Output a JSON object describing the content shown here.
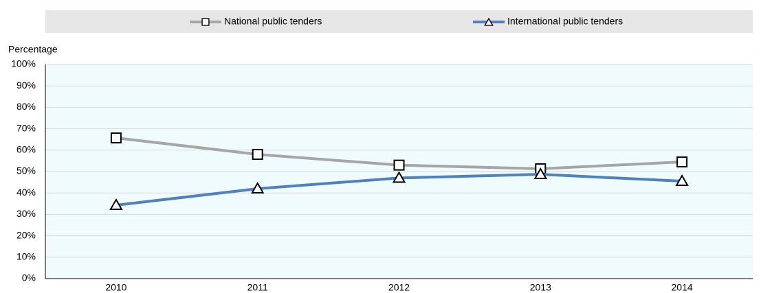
{
  "chart_data": {
    "type": "line",
    "y_axis_label": "Percentage",
    "categories": [
      "2010",
      "2011",
      "2012",
      "2013",
      "2014"
    ],
    "series": [
      {
        "name": "National public tenders",
        "color": "#a6a6a6",
        "marker": "square",
        "values": [
          65.7,
          58,
          53,
          51.3,
          54.5
        ]
      },
      {
        "name": "International public tenders",
        "color": "#4f81bd",
        "marker": "triangle",
        "values": [
          34.3,
          42,
          47,
          48.7,
          45.5
        ]
      }
    ],
    "ylim": [
      0,
      100
    ],
    "yticks": [
      {
        "value": 0,
        "label": "0%"
      },
      {
        "value": 10,
        "label": "10%"
      },
      {
        "value": 20,
        "label": "20%"
      },
      {
        "value": 30,
        "label": "30%"
      },
      {
        "value": 40,
        "label": "40%"
      },
      {
        "value": 50,
        "label": "50%"
      },
      {
        "value": 60,
        "label": "60%"
      },
      {
        "value": 70,
        "label": "70%"
      },
      {
        "value": 80,
        "label": "80%"
      },
      {
        "value": 90,
        "label": "90%"
      },
      {
        "value": 100,
        "label": "100%"
      }
    ],
    "grid": true,
    "legend": "top"
  }
}
